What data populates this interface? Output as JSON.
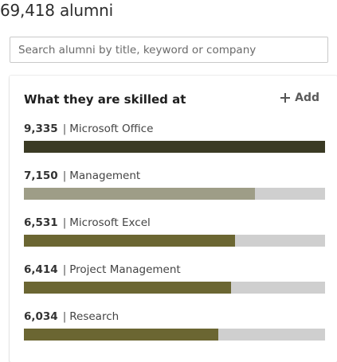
{
  "header": {
    "alumni_count": "69,418 alumni"
  },
  "search": {
    "placeholder": "Search alumni by title, keyword or company",
    "value": ""
  },
  "skills_panel": {
    "title": "What they are skilled at",
    "add_label": "Add",
    "skills": [
      {
        "count": "9,335",
        "name": "Microsoft Office",
        "fraction": 1.0,
        "color": "#3a3a24"
      },
      {
        "count": "7,150",
        "name": "Management",
        "fraction": 0.766,
        "color": "#9e9d87"
      },
      {
        "count": "6,531",
        "name": "Microsoft Excel",
        "fraction": 0.7,
        "color": "#6b6632"
      },
      {
        "count": "6,414",
        "name": "Project Management",
        "fraction": 0.687,
        "color": "#6b6632"
      },
      {
        "count": "6,034",
        "name": "Research",
        "fraction": 0.646,
        "color": "#6b6632"
      }
    ]
  }
}
